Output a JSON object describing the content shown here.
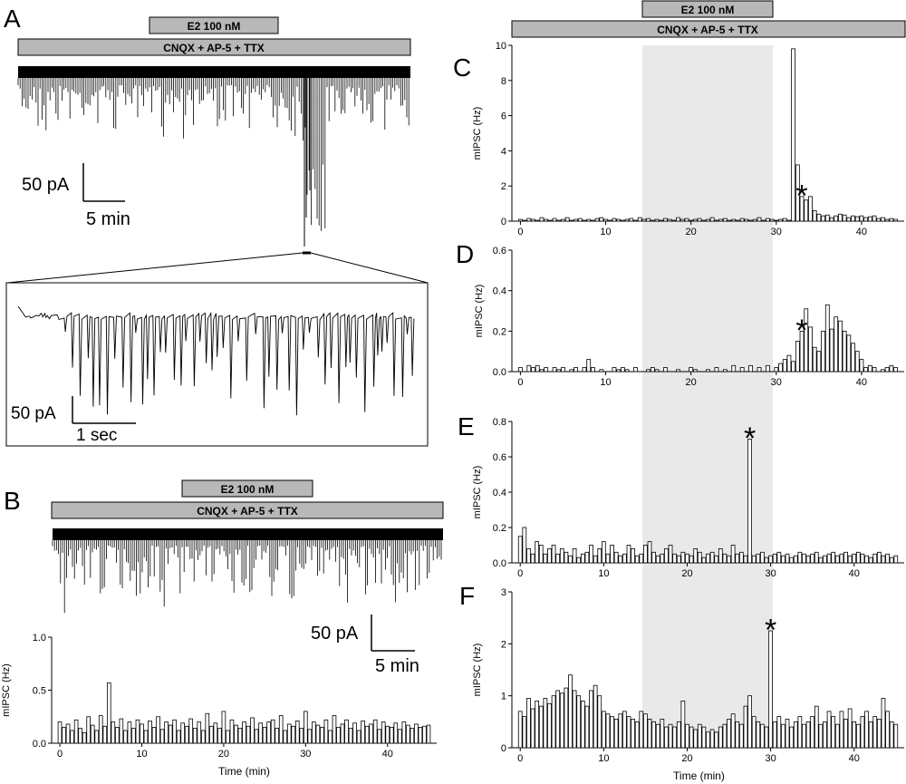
{
  "panels": {
    "A": "A",
    "B": "B",
    "C": "C",
    "D": "D",
    "E": "E",
    "F": "F"
  },
  "drug_bars": {
    "e2": "E2 100 nM",
    "cocktail": "CNQX + AP-5 + TTX"
  },
  "scale_bars": {
    "A_amp": "50 pA",
    "A_time": "5 min",
    "A_inset_amp": "50 pA",
    "A_inset_time": "1 sec",
    "B_amp": "50 pA",
    "B_time": "5 min"
  },
  "axis": {
    "ylabel": "mIPSC (Hz)",
    "xlabel": "Time (min)"
  },
  "significance_marker": "*",
  "colors": {
    "drug_bar": "#b8b8b8",
    "shade": "#e9e9e9",
    "trace": "#000000"
  },
  "chart_data": [
    {
      "panel": "B",
      "type": "bar",
      "xlabel": "Time (min)",
      "ylabel": "mIPSC (Hz)",
      "ylim": [
        0,
        1.0
      ],
      "xlim": [
        -1,
        46
      ],
      "x_ticks": [
        0,
        10,
        20,
        30,
        40
      ],
      "y_ticks": [
        0.0,
        0.5,
        1.0
      ],
      "shaded": null,
      "star_at": null,
      "x": [
        0,
        0.5,
        1,
        1.5,
        2,
        2.5,
        3,
        3.5,
        4,
        4.5,
        5,
        5.5,
        6,
        6.5,
        7,
        7.5,
        8,
        8.5,
        9,
        9.5,
        10,
        10.5,
        11,
        11.5,
        12,
        12.5,
        13,
        13.5,
        14,
        14.5,
        15,
        15.5,
        16,
        16.5,
        17,
        17.5,
        18,
        18.5,
        19,
        19.5,
        20,
        20.5,
        21,
        21.5,
        22,
        22.5,
        23,
        23.5,
        24,
        24.5,
        25,
        25.5,
        26,
        26.5,
        27,
        27.5,
        28,
        28.5,
        29,
        29.5,
        30,
        30.5,
        31,
        31.5,
        32,
        32.5,
        33,
        33.5,
        34,
        34.5,
        35,
        35.5,
        36,
        36.5,
        37,
        37.5,
        38,
        38.5,
        39,
        39.5,
        40,
        40.5,
        41,
        41.5,
        42,
        42.5,
        43,
        43.5,
        44,
        44.5,
        45
      ],
      "values": [
        0.2,
        0.15,
        0.18,
        0.12,
        0.22,
        0.14,
        0.1,
        0.25,
        0.17,
        0.12,
        0.26,
        0.16,
        0.57,
        0.2,
        0.15,
        0.23,
        0.12,
        0.2,
        0.14,
        0.22,
        0.18,
        0.12,
        0.21,
        0.15,
        0.25,
        0.13,
        0.2,
        0.17,
        0.22,
        0.12,
        0.19,
        0.16,
        0.23,
        0.14,
        0.2,
        0.12,
        0.28,
        0.16,
        0.19,
        0.14,
        0.3,
        0.12,
        0.22,
        0.17,
        0.14,
        0.2,
        0.16,
        0.24,
        0.13,
        0.19,
        0.15,
        0.2,
        0.22,
        0.14,
        0.26,
        0.12,
        0.18,
        0.16,
        0.21,
        0.14,
        0.3,
        0.13,
        0.2,
        0.17,
        0.15,
        0.22,
        0.12,
        0.26,
        0.15,
        0.18,
        0.22,
        0.14,
        0.19,
        0.12,
        0.21,
        0.16,
        0.18,
        0.22,
        0.13,
        0.2,
        0.16,
        0.15,
        0.19,
        0.13,
        0.2,
        0.17,
        0.14,
        0.18,
        0.15,
        0.16,
        0.17
      ]
    },
    {
      "panel": "C",
      "type": "bar",
      "xlabel": "",
      "ylabel": "mIPSC (Hz)",
      "ylim": [
        0,
        10
      ],
      "xlim": [
        -1,
        45
      ],
      "x_ticks": [
        0,
        10,
        20,
        30,
        40
      ],
      "y_ticks": [
        0,
        2,
        4,
        6,
        8,
        10
      ],
      "shaded": [
        15,
        30
      ],
      "star_at": 33,
      "x": [
        0,
        0.5,
        1,
        1.5,
        2,
        2.5,
        3,
        3.5,
        4,
        4.5,
        5,
        5.5,
        6,
        6.5,
        7,
        7.5,
        8,
        8.5,
        9,
        9.5,
        10,
        10.5,
        11,
        11.5,
        12,
        12.5,
        13,
        13.5,
        14,
        14.5,
        15,
        15.5,
        16,
        16.5,
        17,
        17.5,
        18,
        18.5,
        19,
        19.5,
        20,
        20.5,
        21,
        21.5,
        22,
        22.5,
        23,
        23.5,
        24,
        24.5,
        25,
        25.5,
        26,
        26.5,
        27,
        27.5,
        28,
        28.5,
        29,
        29.5,
        30,
        30.5,
        31,
        31.5,
        32,
        32.5,
        33,
        33.5,
        34,
        34.5,
        35,
        35.5,
        36,
        36.5,
        37,
        37.5,
        38,
        38.5,
        39,
        39.5,
        40,
        40.5,
        41,
        41.5,
        42,
        42.5,
        43,
        43.5,
        44
      ],
      "values": [
        0.1,
        0.05,
        0.15,
        0.1,
        0.05,
        0.2,
        0.1,
        0.05,
        0.15,
        0.05,
        0.1,
        0.2,
        0.05,
        0.1,
        0.15,
        0.05,
        0.1,
        0.05,
        0.15,
        0.2,
        0.1,
        0.05,
        0.15,
        0.1,
        0.05,
        0.1,
        0.15,
        0.05,
        0.2,
        0.1,
        0.15,
        0.05,
        0.1,
        0.05,
        0.15,
        0.1,
        0.05,
        0.2,
        0.1,
        0.15,
        0.05,
        0.1,
        0.15,
        0.05,
        0.1,
        0.2,
        0.05,
        0.1,
        0.15,
        0.05,
        0.1,
        0.05,
        0.15,
        0.1,
        0.05,
        0.1,
        0.2,
        0.05,
        0.15,
        0.1,
        0.05,
        0.1,
        0.15,
        0.05,
        9.8,
        3.2,
        1.4,
        1.2,
        1.4,
        0.6,
        0.4,
        0.3,
        0.35,
        0.2,
        0.3,
        0.4,
        0.35,
        0.2,
        0.3,
        0.25,
        0.3,
        0.2,
        0.25,
        0.3,
        0.15,
        0.2,
        0.1,
        0.15,
        0.1
      ]
    },
    {
      "panel": "D",
      "type": "bar",
      "xlabel": "",
      "ylabel": "mIPSC (Hz)",
      "ylim": [
        0,
        0.6
      ],
      "xlim": [
        -1,
        45
      ],
      "x_ticks": [
        0,
        10,
        20,
        30,
        40
      ],
      "y_ticks": [
        0.0,
        0.2,
        0.4,
        0.6
      ],
      "shaded": [
        15,
        30
      ],
      "star_at": 33,
      "x": [
        0,
        0.5,
        1,
        1.5,
        2,
        2.5,
        3,
        3.5,
        4,
        4.5,
        5,
        5.5,
        6,
        6.5,
        7,
        7.5,
        8,
        8.5,
        9,
        9.5,
        10,
        10.5,
        11,
        11.5,
        12,
        12.5,
        13,
        13.5,
        14,
        14.5,
        15,
        15.5,
        16,
        16.5,
        17,
        17.5,
        18,
        18.5,
        19,
        19.5,
        20,
        20.5,
        21,
        21.5,
        22,
        22.5,
        23,
        23.5,
        24,
        24.5,
        25,
        25.5,
        26,
        26.5,
        27,
        27.5,
        28,
        28.5,
        29,
        29.5,
        30,
        30.5,
        31,
        31.5,
        32,
        32.5,
        33,
        33.5,
        34,
        34.5,
        35,
        35.5,
        36,
        36.5,
        37,
        37.5,
        38,
        38.5,
        39,
        39.5,
        40,
        40.5,
        41,
        41.5,
        42,
        42.5,
        43,
        43.5,
        44
      ],
      "values": [
        0.02,
        0.0,
        0.03,
        0.02,
        0.03,
        0.01,
        0.02,
        0.0,
        0.02,
        0.01,
        0.02,
        0.0,
        0.01,
        0.02,
        0.0,
        0.02,
        0.06,
        0.02,
        0.0,
        0.01,
        0.0,
        0.0,
        0.02,
        0.01,
        0.02,
        0.01,
        0.0,
        0.02,
        0.0,
        0.0,
        0.01,
        0.02,
        0.01,
        0.0,
        0.02,
        0.0,
        0.0,
        0.01,
        0.0,
        0.0,
        0.02,
        0.01,
        0.0,
        0.0,
        0.01,
        0.0,
        0.02,
        0.0,
        0.01,
        0.0,
        0.03,
        0.0,
        0.02,
        0.0,
        0.03,
        0.0,
        0.02,
        0.0,
        0.03,
        0.0,
        0.02,
        0.04,
        0.06,
        0.08,
        0.05,
        0.15,
        0.2,
        0.31,
        0.22,
        0.12,
        0.1,
        0.2,
        0.33,
        0.21,
        0.27,
        0.25,
        0.2,
        0.18,
        0.14,
        0.1,
        0.06,
        0.02,
        0.03,
        0.02,
        0.0,
        0.01,
        0.02,
        0.03,
        0.02
      ]
    },
    {
      "panel": "E",
      "type": "bar",
      "xlabel": "",
      "ylabel": "mIPSC (Hz)",
      "ylim": [
        0,
        0.8
      ],
      "xlim": [
        -1,
        46
      ],
      "x_ticks": [
        0,
        10,
        20,
        30,
        40
      ],
      "y_ticks": [
        0.0,
        0.2,
        0.4,
        0.6,
        0.8
      ],
      "shaded": [
        15,
        30
      ],
      "star_at": 27.5,
      "x": [
        0,
        0.5,
        1,
        1.5,
        2,
        2.5,
        3,
        3.5,
        4,
        4.5,
        5,
        5.5,
        6,
        6.5,
        7,
        7.5,
        8,
        8.5,
        9,
        9.5,
        10,
        10.5,
        11,
        11.5,
        12,
        12.5,
        13,
        13.5,
        14,
        14.5,
        15,
        15.5,
        16,
        16.5,
        17,
        17.5,
        18,
        18.5,
        19,
        19.5,
        20,
        20.5,
        21,
        21.5,
        22,
        22.5,
        23,
        23.5,
        24,
        24.5,
        25,
        25.5,
        26,
        26.5,
        27,
        27.5,
        28,
        28.5,
        29,
        29.5,
        30,
        30.5,
        31,
        31.5,
        32,
        32.5,
        33,
        33.5,
        34,
        34.5,
        35,
        35.5,
        36,
        36.5,
        37,
        37.5,
        38,
        38.5,
        39,
        39.5,
        40,
        40.5,
        41,
        41.5,
        42,
        42.5,
        43,
        43.5,
        44,
        44.5,
        45
      ],
      "values": [
        0.15,
        0.2,
        0.08,
        0.05,
        0.12,
        0.1,
        0.05,
        0.08,
        0.1,
        0.05,
        0.08,
        0.06,
        0.04,
        0.08,
        0.03,
        0.05,
        0.06,
        0.1,
        0.04,
        0.08,
        0.12,
        0.05,
        0.1,
        0.06,
        0.04,
        0.05,
        0.1,
        0.08,
        0.04,
        0.05,
        0.1,
        0.12,
        0.06,
        0.04,
        0.05,
        0.08,
        0.1,
        0.05,
        0.04,
        0.06,
        0.05,
        0.04,
        0.08,
        0.06,
        0.03,
        0.05,
        0.06,
        0.04,
        0.08,
        0.05,
        0.04,
        0.1,
        0.05,
        0.06,
        0.04,
        0.7,
        0.04,
        0.05,
        0.06,
        0.03,
        0.04,
        0.05,
        0.06,
        0.04,
        0.05,
        0.03,
        0.04,
        0.06,
        0.05,
        0.04,
        0.05,
        0.06,
        0.03,
        0.04,
        0.05,
        0.06,
        0.04,
        0.05,
        0.06,
        0.04,
        0.05,
        0.06,
        0.05,
        0.04,
        0.03,
        0.05,
        0.06,
        0.04,
        0.05,
        0.03,
        0.04
      ]
    },
    {
      "panel": "F",
      "type": "bar",
      "xlabel": "Time (min)",
      "ylabel": "mIPSC (Hz)",
      "ylim": [
        0,
        3
      ],
      "xlim": [
        -1,
        46
      ],
      "x_ticks": [
        0,
        10,
        20,
        30,
        40
      ],
      "y_ticks": [
        0,
        1,
        2,
        3
      ],
      "shaded": [
        15,
        30
      ],
      "star_at": 30,
      "x": [
        0,
        0.5,
        1,
        1.5,
        2,
        2.5,
        3,
        3.5,
        4,
        4.5,
        5,
        5.5,
        6,
        6.5,
        7,
        7.5,
        8,
        8.5,
        9,
        9.5,
        10,
        10.5,
        11,
        11.5,
        12,
        12.5,
        13,
        13.5,
        14,
        14.5,
        15,
        15.5,
        16,
        16.5,
        17,
        17.5,
        18,
        18.5,
        19,
        19.5,
        20,
        20.5,
        21,
        21.5,
        22,
        22.5,
        23,
        23.5,
        24,
        24.5,
        25,
        25.5,
        26,
        26.5,
        27,
        27.5,
        28,
        28.5,
        29,
        29.5,
        30,
        30.5,
        31,
        31.5,
        32,
        32.5,
        33,
        33.5,
        34,
        34.5,
        35,
        35.5,
        36,
        36.5,
        37,
        37.5,
        38,
        38.5,
        39,
        39.5,
        40,
        40.5,
        41,
        41.5,
        42,
        42.5,
        43,
        43.5,
        44,
        44.5,
        45
      ],
      "values": [
        0.7,
        0.6,
        0.95,
        0.75,
        0.9,
        0.8,
        0.95,
        0.85,
        1.0,
        1.1,
        1.05,
        1.15,
        1.4,
        1.1,
        1.0,
        0.9,
        0.8,
        1.1,
        1.2,
        1.0,
        0.7,
        0.65,
        0.6,
        0.55,
        0.65,
        0.7,
        0.6,
        0.55,
        0.5,
        0.7,
        0.65,
        0.55,
        0.5,
        0.45,
        0.55,
        0.4,
        0.45,
        0.4,
        0.5,
        0.9,
        0.45,
        0.4,
        0.35,
        0.45,
        0.4,
        0.3,
        0.35,
        0.3,
        0.4,
        0.45,
        0.55,
        0.65,
        0.5,
        0.45,
        0.8,
        1.0,
        0.6,
        0.5,
        0.45,
        0.4,
        2.25,
        0.5,
        0.6,
        0.45,
        0.55,
        0.4,
        0.5,
        0.6,
        0.45,
        0.5,
        0.6,
        0.8,
        0.45,
        0.5,
        0.7,
        0.6,
        0.45,
        0.7,
        0.55,
        0.75,
        0.5,
        0.45,
        0.6,
        0.7,
        0.5,
        0.6,
        0.55,
        0.95,
        0.7,
        0.5,
        0.45
      ]
    }
  ]
}
